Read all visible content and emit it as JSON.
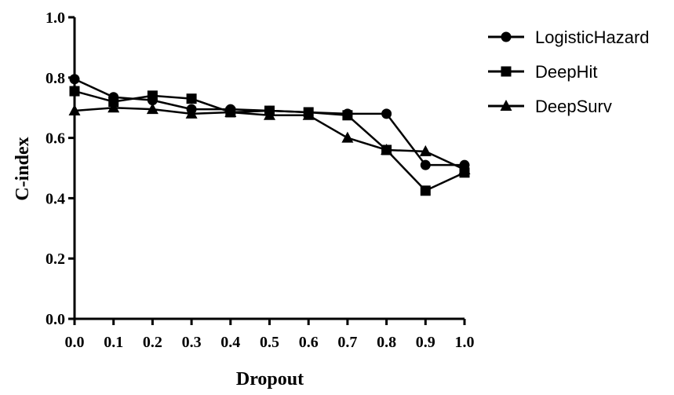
{
  "chart_data": {
    "type": "line",
    "title": "",
    "xlabel": "Dropout",
    "ylabel": "C-index",
    "xlim": [
      0.0,
      1.0
    ],
    "ylim": [
      0.0,
      1.0
    ],
    "x": [
      0.0,
      0.1,
      0.2,
      0.3,
      0.4,
      0.5,
      0.6,
      0.7,
      0.8,
      0.9,
      1.0
    ],
    "x_tick_labels": [
      "0.0",
      "0.1",
      "0.2",
      "0.3",
      "0.4",
      "0.5",
      "0.6",
      "0.7",
      "0.8",
      "0.9",
      "1.0"
    ],
    "y_ticks": [
      0.0,
      0.2,
      0.4,
      0.6,
      0.8,
      1.0
    ],
    "y_tick_labels": [
      "0.0",
      "0.2",
      "0.4",
      "0.6",
      "0.8",
      "1.0"
    ],
    "grid": false,
    "legend_position": "top-right",
    "series": [
      {
        "name": "LogisticHazard",
        "marker": "circle",
        "color": "#000000",
        "values": [
          0.795,
          0.735,
          0.725,
          0.695,
          0.695,
          0.69,
          0.685,
          0.68,
          0.68,
          0.51,
          0.51
        ]
      },
      {
        "name": "DeepHit",
        "marker": "square",
        "color": "#000000",
        "values": [
          0.755,
          0.72,
          0.74,
          0.73,
          0.685,
          0.69,
          0.685,
          0.675,
          0.56,
          0.425,
          0.485
        ]
      },
      {
        "name": "DeepSurv",
        "marker": "triangle",
        "color": "#000000",
        "values": [
          0.69,
          0.7,
          0.695,
          0.68,
          0.685,
          0.675,
          0.675,
          0.6,
          0.56,
          0.555,
          0.495
        ]
      }
    ]
  }
}
